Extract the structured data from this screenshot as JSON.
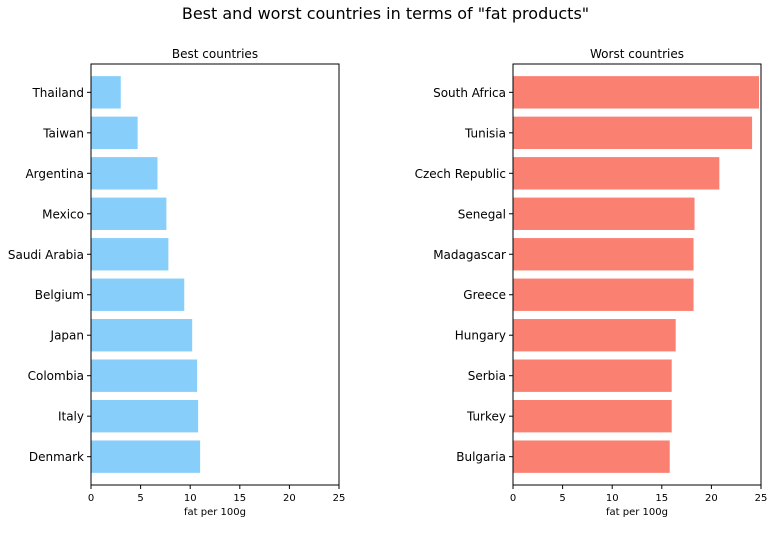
{
  "title": "Best and worst countries in terms of \"fat products\"",
  "chart_data": [
    {
      "type": "bar",
      "orientation": "horizontal",
      "title": "Best countries",
      "xlabel": "fat per 100g",
      "ylabel": "",
      "xlim": [
        0,
        25
      ],
      "xticks": [
        0,
        5,
        10,
        15,
        20,
        25
      ],
      "color": "#87CEFA",
      "grid": false,
      "categories": [
        "Thailand",
        "Taiwan",
        "Argentina",
        "Mexico",
        "Saudi Arabia",
        "Belgium ",
        "Japan",
        "Colombia",
        "Italy",
        "Denmark"
      ],
      "values": [
        3.0,
        4.7,
        6.7,
        7.6,
        7.8,
        9.4,
        10.2,
        10.7,
        10.8,
        11.0
      ]
    },
    {
      "type": "bar",
      "orientation": "horizontal",
      "title": "Worst countries",
      "xlabel": "fat per 100g",
      "ylabel": "",
      "xlim": [
        0,
        25
      ],
      "xticks": [
        0,
        5,
        10,
        15,
        20,
        25
      ],
      "color": "#FA8072",
      "grid": false,
      "categories": [
        "South Africa",
        "Tunisia",
        "Czech Republic",
        "Senegal",
        "Madagascar",
        "Greece",
        "Hungary",
        "Serbia",
        "Turkey",
        "Bulgaria"
      ],
      "values": [
        24.8,
        24.1,
        20.8,
        18.3,
        18.2,
        18.2,
        16.4,
        16.0,
        16.0,
        15.8
      ]
    }
  ]
}
